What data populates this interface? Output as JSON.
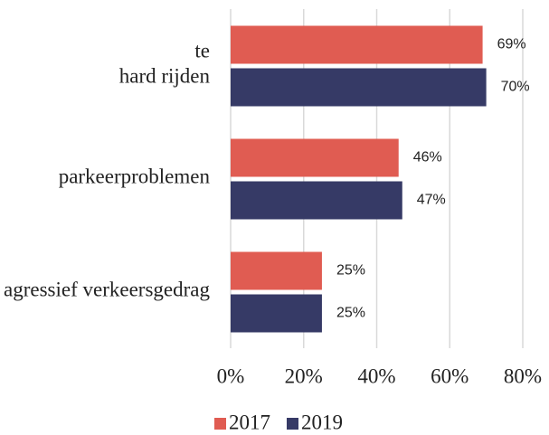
{
  "chart_data": {
    "type": "hbar",
    "categories": [
      "te hard rijden",
      "parkeerproblemen",
      "agressief verkeersgedrag"
    ],
    "series": [
      {
        "name": "2017",
        "color": "#e05c52",
        "values": [
          69,
          46,
          25
        ],
        "value_labels": [
          "69%",
          "46%",
          "25%"
        ]
      },
      {
        "name": "2019",
        "color": "#363a66",
        "values": [
          70,
          47,
          25
        ],
        "value_labels": [
          "70%",
          "47%",
          "25%"
        ]
      }
    ],
    "xlim": [
      0,
      80
    ],
    "xticks": [
      {
        "value": 0,
        "label": "0%"
      },
      {
        "value": 20,
        "label": "20%"
      },
      {
        "value": 40,
        "label": "40%"
      },
      {
        "value": 60,
        "label": "60%"
      },
      {
        "value": 80,
        "label": "80%"
      }
    ],
    "grid": true,
    "legend": "bottom"
  }
}
